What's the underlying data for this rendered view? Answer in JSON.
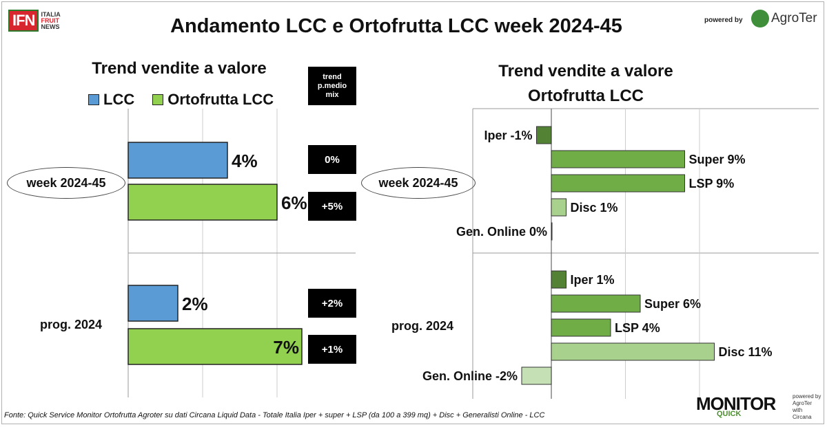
{
  "logo": {
    "ifn": "IFN",
    "line1": "ITALIA",
    "line2": "FRUIT",
    "line3": "NEWS"
  },
  "title": "Andamento LCC e Ortofrutta LCC week 2024-45",
  "powered_by": "powered by",
  "agroter": "AgroTer",
  "footnote": "Fonte: Quick Service Monitor Ortofrutta Agroter su dati Circana Liquid Data - Totale Italia Iper + super + LSP (da 100 a 399 mq) + Disc + Generalisti Online - LCC",
  "monitor": {
    "name": "MONITOR",
    "sub": "QUICK",
    "side1": "powered by",
    "side2": "AgroTer",
    "side3": "with",
    "side4": "Circana"
  },
  "colors": {
    "lcc": "#5b9bd5",
    "ortofrutta": "#92d050",
    "iper": "#548235",
    "super": "#70ad47",
    "lsp": "#70ad47",
    "disc": "#a9d18e",
    "online": "#c5e0b4"
  },
  "chart_data": [
    {
      "type": "bar",
      "title": "Trend vendite a valore",
      "categories": [
        "week 2024-45",
        "prog. 2024"
      ],
      "series": [
        {
          "name": "LCC",
          "values": [
            4,
            2
          ],
          "labels": [
            "4%",
            "2%"
          ]
        },
        {
          "name": "Ortofrutta LCC",
          "values": [
            6,
            7
          ],
          "labels": [
            "6%",
            "7%"
          ]
        }
      ],
      "side_header": "trend p.medio mix",
      "side_header_lines": [
        "trend",
        "p.medio",
        "mix"
      ],
      "side_values": [
        [
          "0%",
          "+5%"
        ],
        [
          "+2%",
          "+1%"
        ]
      ],
      "xlim": [
        0,
        8
      ],
      "grid": true,
      "legend": "top"
    },
    {
      "type": "bar",
      "title": "Trend vendite a valore Ortofrutta LCC",
      "title_lines": [
        "Trend vendite a valore",
        "Ortofrutta LCC"
      ],
      "categories": [
        "week 2024-45",
        "prog. 2024"
      ],
      "bars": [
        [
          {
            "name": "Iper",
            "value": -1,
            "label": "Iper -1%"
          },
          {
            "name": "Super",
            "value": 9,
            "label": "Super 9%"
          },
          {
            "name": "LSP",
            "value": 9,
            "label": "LSP 9%"
          },
          {
            "name": "Disc",
            "value": 1,
            "label": "Disc 1%"
          },
          {
            "name": "Gen. Online",
            "value": 0,
            "label": "Gen. Online 0%"
          }
        ],
        [
          {
            "name": "Iper",
            "value": 1,
            "label": "Iper 1%"
          },
          {
            "name": "Super",
            "value": 6,
            "label": "Super 6%"
          },
          {
            "name": "LSP",
            "value": 4,
            "label": "LSP 4%"
          },
          {
            "name": "Disc",
            "value": 11,
            "label": "Disc 11%"
          },
          {
            "name": "Gen. Online",
            "value": -2,
            "label": "Gen. Online -2%"
          }
        ]
      ],
      "xlim": [
        -3,
        12
      ],
      "grid": true
    }
  ]
}
